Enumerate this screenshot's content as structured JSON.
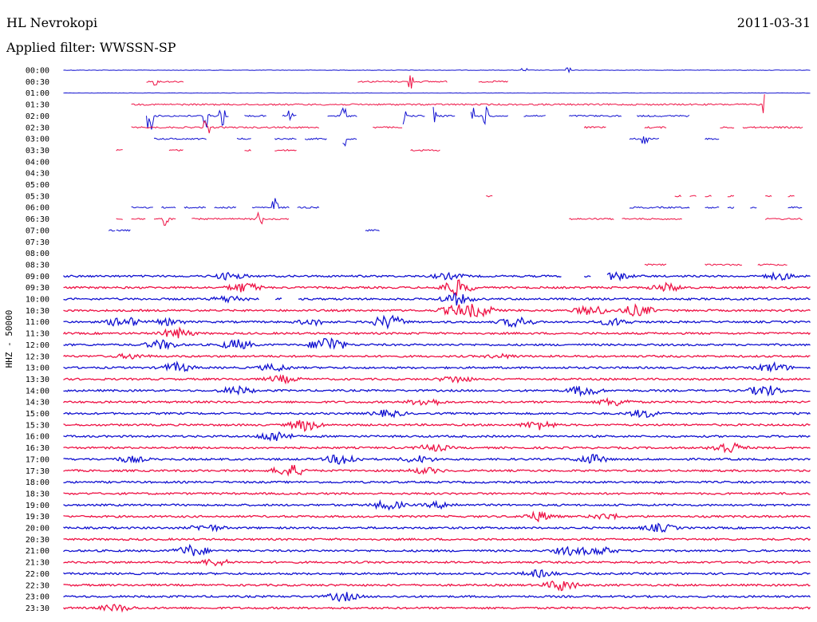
{
  "header": {
    "station": "HL Nevrokopi",
    "date": "2011-03-31",
    "filter": "Applied filter: WWSSN-SP"
  },
  "chart_data": {
    "type": "line",
    "title": "HL Nevrokopi",
    "ylabel": "HHZ - 50000",
    "xlabel": "",
    "colors": {
      "even": "#1010d0",
      "odd": "#ee1144"
    },
    "grid": false,
    "rows": [
      {
        "label": "00:00",
        "activity": "sparse",
        "spikes": [
          [
            0.62,
            0.3
          ],
          [
            0.68,
            0.4
          ]
        ]
      },
      {
        "label": "00:30",
        "activity": "gappy",
        "segments": [
          [
            0.12,
            0.17
          ],
          [
            0.4,
            0.52
          ],
          [
            0.56,
            0.6
          ]
        ],
        "spikes": [
          [
            0.13,
            0.5
          ],
          [
            0.47,
            1.3
          ]
        ]
      },
      {
        "label": "01:00",
        "activity": "sparse",
        "spikes": []
      },
      {
        "label": "01:30",
        "activity": "gappy",
        "segments": [
          [
            0.1,
            0.94
          ]
        ],
        "spikes": [
          [
            0.94,
            3.0
          ]
        ]
      },
      {
        "label": "02:00",
        "activity": "gappy",
        "segments": [
          [
            0.12,
            0.2
          ],
          [
            0.2,
            0.23
          ],
          [
            0.25,
            0.28
          ],
          [
            0.3,
            0.32
          ],
          [
            0.36,
            0.4
          ],
          [
            0.46,
            0.49
          ],
          [
            0.5,
            0.53
          ],
          [
            0.55,
            0.6
          ],
          [
            0.62,
            0.65
          ],
          [
            0.68,
            0.75
          ],
          [
            0.77,
            0.84
          ]
        ],
        "spikes": [
          [
            0.125,
            2.4
          ],
          [
            0.2,
            3.0
          ],
          [
            0.22,
            2.0
          ],
          [
            0.31,
            1.6
          ],
          [
            0.38,
            1.6
          ],
          [
            0.46,
            1.8
          ],
          [
            0.5,
            2.0
          ],
          [
            0.55,
            2.0
          ],
          [
            0.57,
            1.4
          ]
        ]
      },
      {
        "label": "02:30",
        "activity": "gappy",
        "segments": [
          [
            0.1,
            0.35
          ],
          [
            0.42,
            0.46
          ],
          [
            0.7,
            0.73
          ],
          [
            0.78,
            0.81
          ],
          [
            0.88,
            0.9
          ],
          [
            0.91,
            0.99
          ]
        ],
        "spikes": [
          [
            0.2,
            1.0
          ]
        ]
      },
      {
        "label": "03:00",
        "activity": "gappy",
        "segments": [
          [
            0.13,
            0.2
          ],
          [
            0.24,
            0.26
          ],
          [
            0.29,
            0.32
          ],
          [
            0.33,
            0.36
          ],
          [
            0.38,
            0.4
          ],
          [
            0.76,
            0.8
          ],
          [
            0.86,
            0.88
          ]
        ],
        "spikes": [
          [
            0.38,
            1.2
          ],
          [
            0.78,
            0.8
          ]
        ]
      },
      {
        "label": "03:30",
        "activity": "gappy",
        "segments": [
          [
            0.08,
            0.09
          ],
          [
            0.15,
            0.17
          ],
          [
            0.25,
            0.26
          ],
          [
            0.29,
            0.32
          ],
          [
            0.47,
            0.51
          ]
        ],
        "spikes": []
      },
      {
        "label": "04:00",
        "activity": "none"
      },
      {
        "label": "04:30",
        "activity": "none"
      },
      {
        "label": "05:00",
        "activity": "none"
      },
      {
        "label": "05:30",
        "activity": "gappy",
        "segments": [
          [
            0.57,
            0.58
          ],
          [
            0.82,
            0.83
          ],
          [
            0.84,
            0.85
          ],
          [
            0.86,
            0.87
          ],
          [
            0.89,
            0.9
          ],
          [
            0.94,
            0.95
          ],
          [
            0.97,
            0.98
          ]
        ],
        "spikes": []
      },
      {
        "label": "06:00",
        "activity": "gappy",
        "segments": [
          [
            0.1,
            0.13
          ],
          [
            0.14,
            0.16
          ],
          [
            0.17,
            0.2
          ],
          [
            0.21,
            0.24
          ],
          [
            0.26,
            0.31
          ],
          [
            0.32,
            0.35
          ],
          [
            0.76,
            0.84
          ],
          [
            0.86,
            0.88
          ],
          [
            0.89,
            0.9
          ],
          [
            0.92,
            0.93
          ],
          [
            0.97,
            0.99
          ]
        ],
        "spikes": [
          [
            0.29,
            1.6
          ]
        ]
      },
      {
        "label": "06:30",
        "activity": "gappy",
        "segments": [
          [
            0.08,
            0.09
          ],
          [
            0.1,
            0.12
          ],
          [
            0.13,
            0.16
          ],
          [
            0.18,
            0.31
          ],
          [
            0.68,
            0.74
          ],
          [
            0.75,
            0.83
          ],
          [
            0.94,
            0.99
          ]
        ],
        "spikes": [
          [
            0.145,
            1.8
          ],
          [
            0.27,
            1.2
          ]
        ]
      },
      {
        "label": "07:00",
        "activity": "gappy",
        "segments": [
          [
            0.07,
            0.08
          ],
          [
            0.08,
            0.1
          ],
          [
            0.41,
            0.43
          ]
        ],
        "spikes": []
      },
      {
        "label": "07:30",
        "activity": "none"
      },
      {
        "label": "08:00",
        "activity": "none"
      },
      {
        "label": "08:30",
        "activity": "gappy",
        "segments": [
          [
            0.78,
            0.81
          ],
          [
            0.86,
            0.91
          ],
          [
            0.93,
            0.97
          ]
        ],
        "spikes": []
      },
      {
        "label": "09:00",
        "activity": "dense",
        "gaps": [
          [
            0.67,
            0.7
          ],
          [
            0.71,
            0.73
          ]
        ],
        "events": [
          [
            0.23,
            0.6
          ],
          [
            0.52,
            0.5
          ],
          [
            0.74,
            0.7
          ],
          [
            0.96,
            0.6
          ]
        ]
      },
      {
        "label": "09:30",
        "activity": "dense",
        "gaps": [],
        "events": [
          [
            0.25,
            0.9
          ],
          [
            0.53,
            1.4
          ],
          [
            0.81,
            0.7
          ]
        ]
      },
      {
        "label": "10:00",
        "activity": "dense",
        "gaps": [
          [
            0.27,
            0.29
          ],
          [
            0.3,
            0.32
          ]
        ],
        "events": [
          [
            0.23,
            0.6
          ],
          [
            0.53,
            1.0
          ]
        ]
      },
      {
        "label": "10:30",
        "activity": "dense",
        "gaps": [],
        "events": [
          [
            0.53,
            0.9
          ],
          [
            0.56,
            1.1
          ],
          [
            0.71,
            0.9
          ],
          [
            0.77,
            1.0
          ]
        ]
      },
      {
        "label": "11:00",
        "activity": "dense",
        "gaps": [],
        "events": [
          [
            0.09,
            1.0
          ],
          [
            0.15,
            0.5
          ],
          [
            0.34,
            0.5
          ],
          [
            0.44,
            1.2
          ],
          [
            0.61,
            0.9
          ],
          [
            0.74,
            0.6
          ]
        ]
      },
      {
        "label": "11:30",
        "activity": "dense",
        "gaps": [],
        "events": [
          [
            0.16,
            0.9
          ]
        ]
      },
      {
        "label": "12:00",
        "activity": "dense",
        "gaps": [],
        "events": [
          [
            0.14,
            0.8
          ],
          [
            0.24,
            0.9
          ],
          [
            0.36,
            1.6
          ]
        ]
      },
      {
        "label": "12:30",
        "activity": "dense",
        "gaps": [],
        "events": [
          [
            0.1,
            0.4
          ],
          [
            0.59,
            0.3
          ]
        ]
      },
      {
        "label": "13:00",
        "activity": "dense",
        "gaps": [],
        "events": [
          [
            0.16,
            0.8
          ],
          [
            0.29,
            0.6
          ],
          [
            0.95,
            0.8
          ]
        ]
      },
      {
        "label": "13:30",
        "activity": "dense",
        "gaps": [],
        "events": [
          [
            0.3,
            0.6
          ],
          [
            0.53,
            0.6
          ]
        ]
      },
      {
        "label": "14:00",
        "activity": "dense",
        "gaps": [],
        "events": [
          [
            0.24,
            0.7
          ],
          [
            0.7,
            0.9
          ],
          [
            0.94,
            1.0
          ]
        ]
      },
      {
        "label": "14:30",
        "activity": "dense",
        "gaps": [],
        "events": [
          [
            0.49,
            0.7
          ],
          [
            0.74,
            0.7
          ]
        ]
      },
      {
        "label": "15:00",
        "activity": "dense",
        "gaps": [],
        "events": [
          [
            0.44,
            0.6
          ],
          [
            0.78,
            0.7
          ]
        ]
      },
      {
        "label": "15:30",
        "activity": "dense",
        "gaps": [],
        "events": [
          [
            0.33,
            1.0
          ],
          [
            0.64,
            0.8
          ]
        ]
      },
      {
        "label": "16:00",
        "activity": "dense",
        "gaps": [],
        "events": [
          [
            0.29,
            1.0
          ]
        ]
      },
      {
        "label": "16:30",
        "activity": "dense",
        "gaps": [],
        "events": [
          [
            0.5,
            0.6
          ],
          [
            0.89,
            1.1
          ]
        ]
      },
      {
        "label": "17:00",
        "activity": "dense",
        "gaps": [],
        "events": [
          [
            0.1,
            0.5
          ],
          [
            0.38,
            1.0
          ],
          [
            0.48,
            0.6
          ],
          [
            0.71,
            0.8
          ]
        ]
      },
      {
        "label": "17:30",
        "activity": "dense",
        "gaps": [],
        "events": [
          [
            0.31,
            1.1
          ],
          [
            0.49,
            0.5
          ]
        ]
      },
      {
        "label": "18:00",
        "activity": "dense",
        "gaps": [],
        "events": []
      },
      {
        "label": "18:30",
        "activity": "dense",
        "gaps": [],
        "events": []
      },
      {
        "label": "19:00",
        "activity": "dense",
        "gaps": [],
        "events": [
          [
            0.44,
            0.8
          ],
          [
            0.51,
            0.5
          ]
        ]
      },
      {
        "label": "19:30",
        "activity": "dense",
        "gaps": [],
        "events": [
          [
            0.64,
            0.8
          ],
          [
            0.73,
            0.5
          ]
        ]
      },
      {
        "label": "20:00",
        "activity": "dense",
        "gaps": [],
        "events": [
          [
            0.2,
            0.6
          ],
          [
            0.8,
            0.7
          ]
        ]
      },
      {
        "label": "20:30",
        "activity": "dense",
        "gaps": [],
        "events": []
      },
      {
        "label": "21:00",
        "activity": "dense",
        "gaps": [],
        "events": [
          [
            0.18,
            1.0
          ],
          [
            0.68,
            0.7
          ],
          [
            0.72,
            0.7
          ]
        ]
      },
      {
        "label": "21:30",
        "activity": "dense",
        "gaps": [],
        "events": [
          [
            0.21,
            0.6
          ]
        ]
      },
      {
        "label": "22:00",
        "activity": "dense",
        "gaps": [],
        "events": [
          [
            0.64,
            0.6
          ]
        ]
      },
      {
        "label": "22:30",
        "activity": "dense",
        "gaps": [],
        "events": [
          [
            0.67,
            1.0
          ]
        ]
      },
      {
        "label": "23:00",
        "activity": "dense",
        "gaps": [],
        "events": [
          [
            0.38,
            0.8
          ]
        ]
      },
      {
        "label": "23:30",
        "activity": "dense",
        "gaps": [],
        "events": [
          [
            0.08,
            0.6
          ]
        ]
      }
    ]
  }
}
